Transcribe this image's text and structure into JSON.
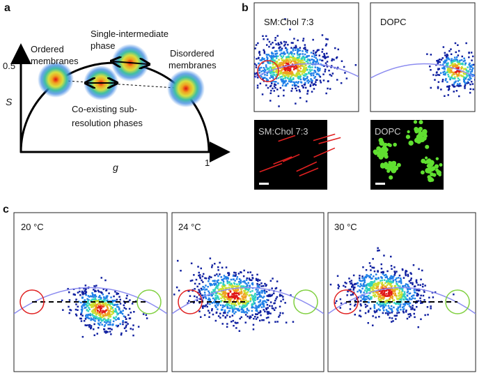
{
  "panel_a": {
    "label": "a",
    "y_axis_label": "S",
    "x_axis_label": "g",
    "y_tick": "0.5",
    "x_tick": "1",
    "ordered": [
      "Ordered",
      "membranes"
    ],
    "single": [
      "Single-intermediate",
      "phase"
    ],
    "disordered": [
      "Disordered",
      "membranes"
    ],
    "coexisting": [
      "Co-existing sub-",
      "resolution phases"
    ]
  },
  "panel_b": {
    "label": "b",
    "plots": [
      "SM:Chol 7:3",
      "DOPC"
    ],
    "images": [
      "SM:Chol 7:3",
      "DOPC"
    ]
  },
  "panel_c": {
    "label": "c",
    "plots": [
      "20 °C",
      "24 °C",
      "30 °C"
    ]
  }
}
